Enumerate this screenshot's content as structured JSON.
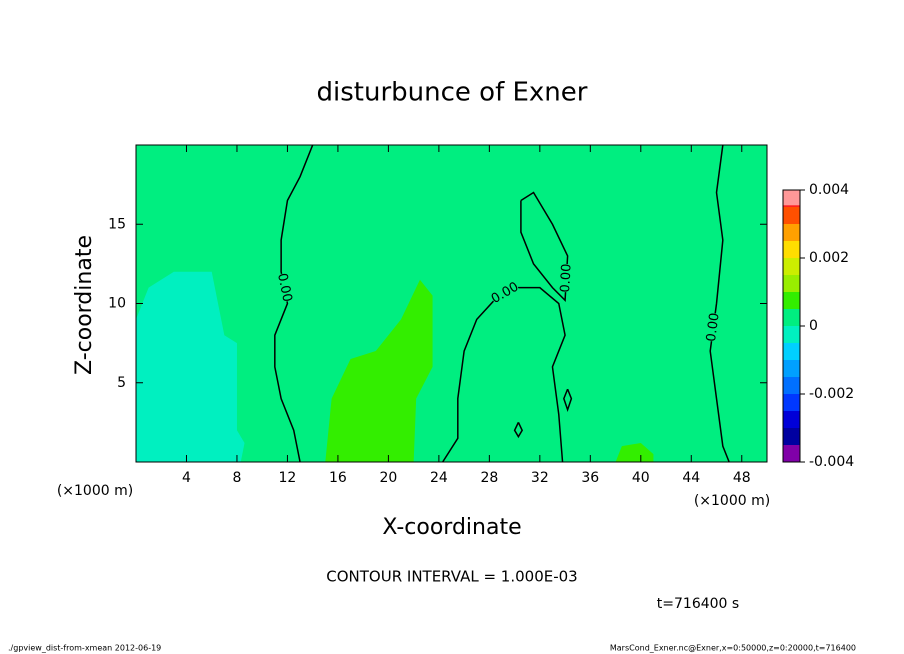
{
  "chart_data": {
    "type": "contour",
    "title": "disturbunce of Exner",
    "xlabel": "X-coordinate",
    "ylabel": "Z-coordinate",
    "xunit": "(×1000 m)",
    "xlim": [
      0,
      50
    ],
    "ylim": [
      0,
      20
    ],
    "xticks": [
      4,
      8,
      12,
      16,
      20,
      24,
      28,
      32,
      36,
      40,
      44,
      48
    ],
    "yticks": [
      5,
      10,
      15
    ],
    "background_value": 0.00025,
    "regions": [
      {
        "value": -0.00025,
        "points": [
          [
            0,
            0.5
          ],
          [
            0,
            9
          ],
          [
            1,
            11
          ],
          [
            3,
            12
          ],
          [
            6,
            12
          ],
          [
            6.5,
            10
          ],
          [
            7,
            8
          ],
          [
            8,
            7.5
          ],
          [
            8,
            2
          ],
          [
            8.6,
            1.2
          ],
          [
            8.3,
            0
          ],
          [
            0,
            0
          ]
        ]
      },
      {
        "value": 0.00075,
        "points": [
          [
            15,
            0
          ],
          [
            15.5,
            4
          ],
          [
            17,
            6.5
          ],
          [
            19,
            7
          ],
          [
            21,
            9
          ],
          [
            22.5,
            11.5
          ],
          [
            23.5,
            10.5
          ],
          [
            23.5,
            6
          ],
          [
            22.2,
            4
          ],
          [
            22,
            0
          ]
        ]
      },
      {
        "value": 0.00075,
        "points": [
          [
            38,
            0
          ],
          [
            38.5,
            1
          ],
          [
            40,
            1.2
          ],
          [
            41,
            0.5
          ],
          [
            41,
            0
          ]
        ]
      }
    ],
    "contours": [
      {
        "level": 0,
        "label": "0.00",
        "points": [
          [
            14,
            20
          ],
          [
            13,
            18
          ],
          [
            12,
            16.5
          ],
          [
            11.5,
            14
          ],
          [
            11.5,
            12
          ],
          [
            12,
            10
          ],
          [
            11,
            8
          ],
          [
            11,
            6
          ],
          [
            11.5,
            4
          ],
          [
            12.5,
            2
          ],
          [
            13,
            0
          ]
        ]
      },
      {
        "level": 0,
        "label": "0.00",
        "points": [
          [
            24.3,
            0
          ],
          [
            25.5,
            1.5
          ],
          [
            25.5,
            4
          ],
          [
            26,
            7
          ],
          [
            27,
            9
          ],
          [
            28.5,
            10.3
          ],
          [
            30,
            11
          ],
          [
            32,
            11
          ],
          [
            33.5,
            10
          ],
          [
            34,
            8
          ],
          [
            33,
            6
          ],
          [
            33.5,
            3
          ],
          [
            33.8,
            0
          ]
        ]
      },
      {
        "level": 0,
        "label": "0.00",
        "points": [
          [
            30.5,
            16.5
          ],
          [
            31.5,
            17
          ],
          [
            33,
            15
          ],
          [
            34.2,
            13
          ],
          [
            34,
            10.2
          ],
          [
            33,
            11
          ],
          [
            31.5,
            12.5
          ],
          [
            30.5,
            14.5
          ],
          [
            30.5,
            16.5
          ]
        ]
      },
      {
        "level": 0,
        "points": [
          [
            34.2,
            4.6
          ],
          [
            34.5,
            4
          ],
          [
            34.2,
            3.3
          ],
          [
            33.9,
            4
          ],
          [
            34.2,
            4.6
          ]
        ]
      },
      {
        "level": 0,
        "points": [
          [
            30.3,
            2.5
          ],
          [
            30.6,
            2
          ],
          [
            30.3,
            1.6
          ],
          [
            30,
            2
          ],
          [
            30.3,
            2.5
          ]
        ]
      },
      {
        "level": 0,
        "label": "0.00",
        "points": [
          [
            46.5,
            20
          ],
          [
            46,
            17
          ],
          [
            46.5,
            14
          ],
          [
            46,
            10
          ],
          [
            45.5,
            7
          ],
          [
            46,
            4
          ],
          [
            46.5,
            1
          ],
          [
            47,
            0
          ]
        ]
      }
    ],
    "colorbar": {
      "levels": [
        -0.004,
        -0.0035,
        -0.003,
        -0.0025,
        -0.002,
        -0.0015,
        -0.001,
        -0.0005,
        0,
        0.0005,
        0.001,
        0.0015,
        0.002,
        0.0025,
        0.003,
        0.0035,
        0.004
      ],
      "colors": [
        "#8000a8",
        "#0000a0",
        "#0000d8",
        "#0038ff",
        "#0070ff",
        "#00a0ff",
        "#00d0ff",
        "#00f0c0",
        "#00ee80",
        "#33ee00",
        "#99ee00",
        "#ccee00",
        "#ffdd00",
        "#ffa000",
        "#ff5000",
        "#ff2020"
      ],
      "top_color": "#ff9898",
      "ticks": [
        -0.004,
        -0.002,
        0,
        0.002,
        0.004
      ]
    },
    "contour_interval": "CONTOUR INTERVAL = 1.000E-03",
    "time": "t=716400 s",
    "footer_left": "./gpview_dist-from-xmean  2012-06-19",
    "footer_right": "MarsCond_Exner.nc@Exner,x=0:50000,z=0:20000,t=716400"
  }
}
